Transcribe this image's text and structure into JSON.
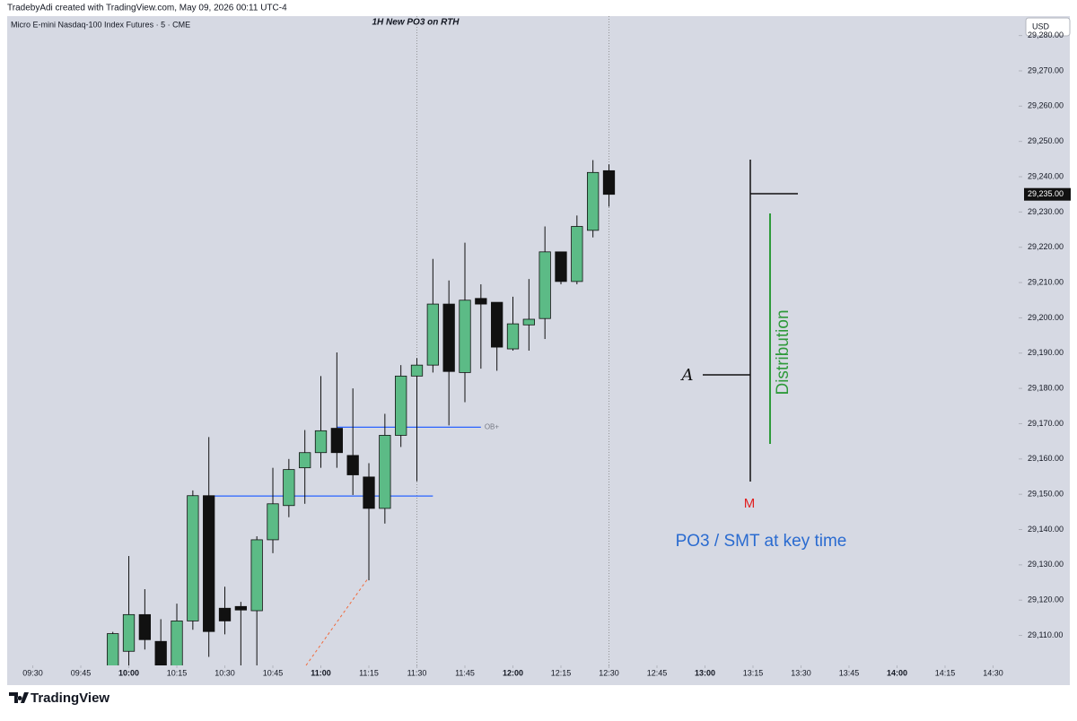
{
  "chart_data": {
    "type": "candlestick",
    "header": "TradebyAdi created with TradingView.com, May 09, 2026 00:11 UTC-4",
    "symbol": "Micro E-mini Nasdaq-100 Index Futures · 5 · CME",
    "title": "1H New PO3 on RTH",
    "currency": "USD",
    "brand": "TradingView",
    "up_color": "#5cbb86",
    "down_color": "#111111",
    "x": [
      "09:55",
      "10:00",
      "10:05",
      "10:10",
      "10:15",
      "10:20",
      "10:25",
      "10:30",
      "10:35",
      "10:40",
      "10:45",
      "10:50",
      "10:55",
      "11:00",
      "11:05",
      "11:10",
      "11:15",
      "11:20",
      "11:25",
      "11:30",
      "11:35",
      "11:40",
      "11:45",
      "11:50",
      "11:55",
      "12:00",
      "12:05",
      "12:10",
      "12:15",
      "12:20",
      "12:25",
      "12:30"
    ],
    "open": [
      29100,
      29105.5,
      29115.9,
      29108.3,
      29100,
      29114.1,
      29149.6,
      29117.7,
      29118.2,
      29117,
      29137.1,
      29146.8,
      29157.5,
      29161.8,
      29168.7,
      29161,
      29154.9,
      29146,
      29166.7,
      29183.5,
      29186.6,
      29203.9,
      29184.5,
      29205.5,
      29204.4,
      29191.2,
      29198,
      29199.8,
      29218.7,
      29210.3,
      29224.8,
      29241.7
    ],
    "high": [
      29111,
      29132.5,
      29123.1,
      29114.6,
      29119,
      29151.1,
      29166.2,
      29123.8,
      29119.5,
      29138.1,
      29157.5,
      29160,
      29168.2,
      29183.5,
      29190.2,
      29180,
      29158.8,
      29172.8,
      29186.6,
      29188.6,
      29216.7,
      29210.6,
      29221.3,
      29209.5,
      29204.4,
      29206,
      29211,
      29225.9,
      29218.7,
      29229,
      29244.7,
      29243.5
    ],
    "low": [
      29099,
      29101.4,
      29106,
      29099,
      29099,
      29111.6,
      29103.9,
      29110.3,
      29100,
      29100,
      29133.3,
      29143.5,
      29147.3,
      29157.5,
      29157.5,
      29149.8,
      29125.6,
      29141.7,
      29163.4,
      29153.7,
      29184.5,
      29169.5,
      29176.1,
      29185.6,
      29185,
      29190.7,
      29190.7,
      29194,
      29209.5,
      29209.5,
      29222.8,
      29231.5
    ],
    "close": [
      29110.5,
      29115.9,
      29108.8,
      29100,
      29114.1,
      29149.6,
      29111.1,
      29114.1,
      29117.2,
      29137.1,
      29147.3,
      29157,
      29161.8,
      29168,
      29161.8,
      29155.5,
      29146,
      29166.7,
      29183.5,
      29186.6,
      29203.9,
      29184.8,
      29205,
      29203.9,
      29191.7,
      29198.3,
      29199.6,
      29218.7,
      29210.3,
      29225.9,
      29241.2,
      29235
    ],
    "xlim": [
      "09:22",
      "14:38"
    ],
    "xticks": [
      "09:30",
      "09:45",
      "10:00",
      "10:15",
      "10:30",
      "10:45",
      "11:00",
      "11:15",
      "11:30",
      "11:45",
      "12:00",
      "12:15",
      "12:30",
      "12:45",
      "13:00",
      "13:15",
      "13:30",
      "13:45",
      "14:00",
      "14:15",
      "14:30"
    ],
    "ylim": [
      29101.5,
      29285.5
    ],
    "yticks": [
      {
        "value": 29110,
        "label": "29,110.00"
      },
      {
        "value": 29120,
        "label": "29,120.00"
      },
      {
        "value": 29130,
        "label": "29,130.00"
      },
      {
        "value": 29140,
        "label": "29,140.00"
      },
      {
        "value": 29150,
        "label": "29,150.00"
      },
      {
        "value": 29160,
        "label": "29,160.00"
      },
      {
        "value": 29170,
        "label": "29,170.00"
      },
      {
        "value": 29180,
        "label": "29,180.00"
      },
      {
        "value": 29190,
        "label": "29,190.00"
      },
      {
        "value": 29200,
        "label": "29,200.00"
      },
      {
        "value": 29210,
        "label": "29,210.00"
      },
      {
        "value": 29220,
        "label": "29,220.00"
      },
      {
        "value": 29230,
        "label": "29,230.00"
      },
      {
        "value": 29240,
        "label": "29,240.00"
      },
      {
        "value": 29250,
        "label": "29,250.00"
      },
      {
        "value": 29260,
        "label": "29,260.00"
      },
      {
        "value": 29270,
        "label": "29,270.00"
      },
      {
        "value": 29280,
        "label": "29,280.00"
      }
    ],
    "last_price": {
      "value": 29235,
      "label": "29,235.00"
    },
    "hlines": [
      {
        "value": 29149.5,
        "from": "10:25",
        "to": "11:35",
        "color": "#2962ff"
      },
      {
        "value": 29169,
        "from": "11:05",
        "to": "11:50",
        "color": "#2962ff",
        "label": "OB+"
      }
    ],
    "vlines": [
      "11:30",
      "12:30"
    ],
    "annotations": {
      "a": "A",
      "m": "M",
      "distribution": "Distribution",
      "note": "PO3 / SMT at key time"
    }
  }
}
